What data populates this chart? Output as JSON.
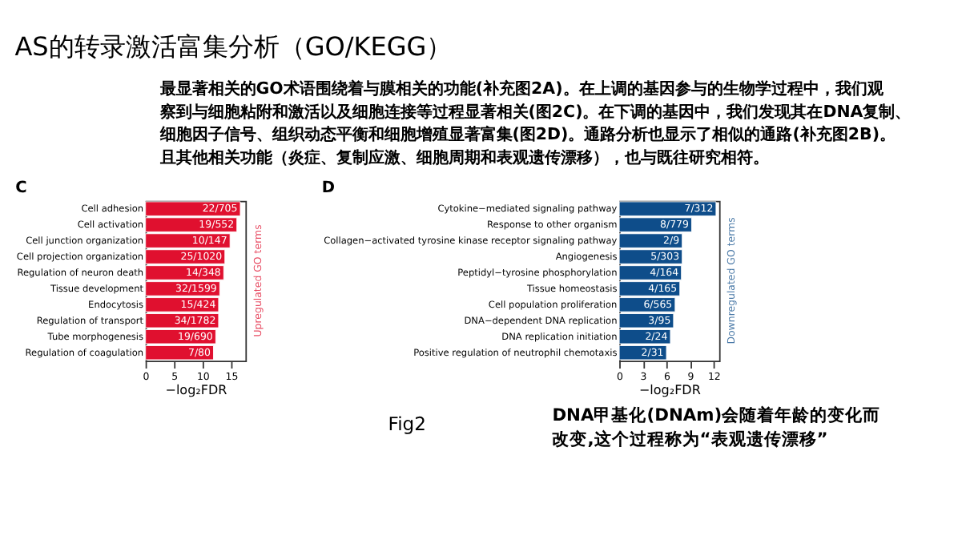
{
  "chart_data": [
    {
      "type": "other",
      "title": "AS的转录激活富集分析（GO/KEGG）",
      "annotations": [
        "最显著相关的GO术语围绕着与膜相关的功能(补充图2A)。在上调的基因参与的生物学过程中，我们观",
        "察到与细胞粘附和激活以及细胞连接等过程显著相关(图2C)。在下调的基因中，我们发现其在DNA复制、",
        "细胞因子信号、组织动态平衡和细胞增殖显著富集(图2D)。通路分析也显示了相似的通路(补充图2B)。",
        "且其他相关功能（炎症、复制应激、细胞周期和表观遗传漂移），也与既往研究相符。"
      ]
    },
    {
      "type": "bar",
      "orientation": "horizontal",
      "title": "C",
      "xlabel": "−log₂FDR",
      "y2label": "Upregulated GO terms",
      "categories": [
        "Cell adhesion",
        "Cell activation",
        "Cell junction organization",
        "Cell projection organization",
        "Regulation of neuron death",
        "Tissue development",
        "Endocytosis",
        "Regulation of transport",
        "Tube morphogenesis",
        "Regulation of coagulation"
      ],
      "series": [
        {
          "color": "#e0102f",
          "values": [
            16.6,
            16.0,
            14.8,
            13.9,
            13.7,
            13.0,
            12.8,
            12.8,
            12.3,
            11.9
          ],
          "value_labels": [
            "22/705",
            "19/552",
            "10/147",
            "25/1020",
            "14/348",
            "32/1599",
            "15/424",
            "34/1782",
            "19/690",
            "7/80"
          ]
        }
      ],
      "xlim": [
        0,
        17.5
      ],
      "xticks": [
        0,
        5,
        10,
        15
      ],
      "grid": false
    },
    {
      "type": "bar",
      "orientation": "horizontal",
      "title": "D",
      "xlabel": "−log₂FDR",
      "y2label": "Downregulated GO terms",
      "categories": [
        "Cytokine−mediated signaling pathway",
        "Response to other organism",
        "Collagen−activated tyrosine kinase receptor signaling pathway",
        "Angiogenesis",
        "Peptidyl−tyrosine phosphorylation",
        "Tissue homeostasis",
        "Cell population proliferation",
        "DNA−dependent DNA replication",
        "DNA replication initiation",
        "Positive regulation of neutrophil chemotaxis"
      ],
      "series": [
        {
          "color": "#0e4d8a",
          "values": [
            12.3,
            9.2,
            8.0,
            8.0,
            7.9,
            7.7,
            7.1,
            6.9,
            6.5,
            6.0
          ],
          "value_labels": [
            "7/312",
            "8/779",
            "2/9",
            "5/303",
            "4/164",
            "4/165",
            "6/565",
            "3/95",
            "2/24",
            "2/31"
          ]
        }
      ],
      "xlim": [
        0,
        12.7
      ],
      "xticks": [
        0,
        3,
        6,
        9,
        12
      ],
      "grid": false
    },
    {
      "type": "other",
      "annotations": [
        "Fig2",
        "DNA甲基化(DNAm)会随着年龄的变化而",
        "改变,这个过程称为“表观遗传漂移”"
      ]
    }
  ]
}
